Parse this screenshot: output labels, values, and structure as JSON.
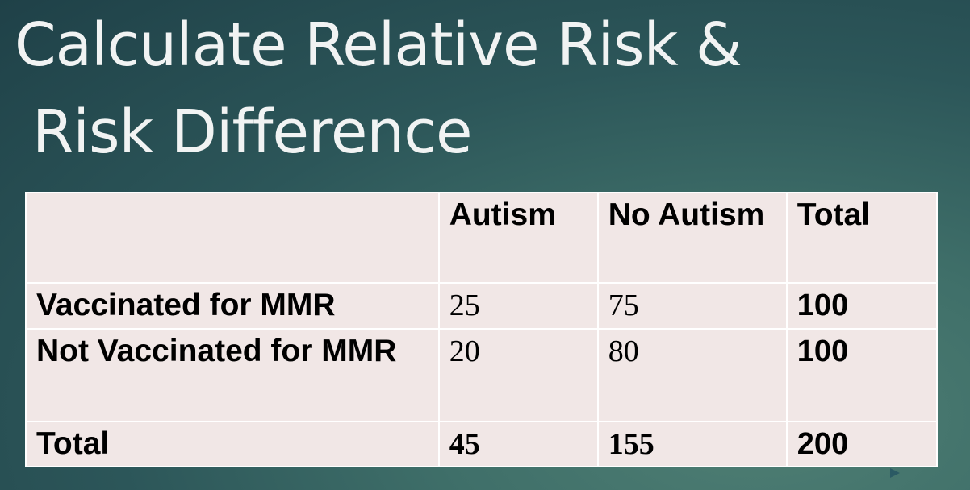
{
  "slide": {
    "title_line1": "Calculate Relative Risk &",
    "title_line2": "Risk Difference"
  },
  "table": {
    "headers": [
      "",
      "Autism",
      "No Autism",
      "Total"
    ],
    "rows": [
      [
        "Vaccinated for MMR",
        "25",
        "75",
        "100"
      ],
      [
        "Not Vaccinated for MMR",
        "20",
        "80",
        "100"
      ],
      [
        "Total",
        "45",
        "155",
        "200"
      ]
    ]
  },
  "colors": {
    "table_fill": "#f1e7e6",
    "title_text": "#f1f3f3",
    "background_dark": "#1f4148",
    "background_light": "#4f7f74"
  },
  "icons": {
    "slide_marker": "triangle-right-icon"
  }
}
